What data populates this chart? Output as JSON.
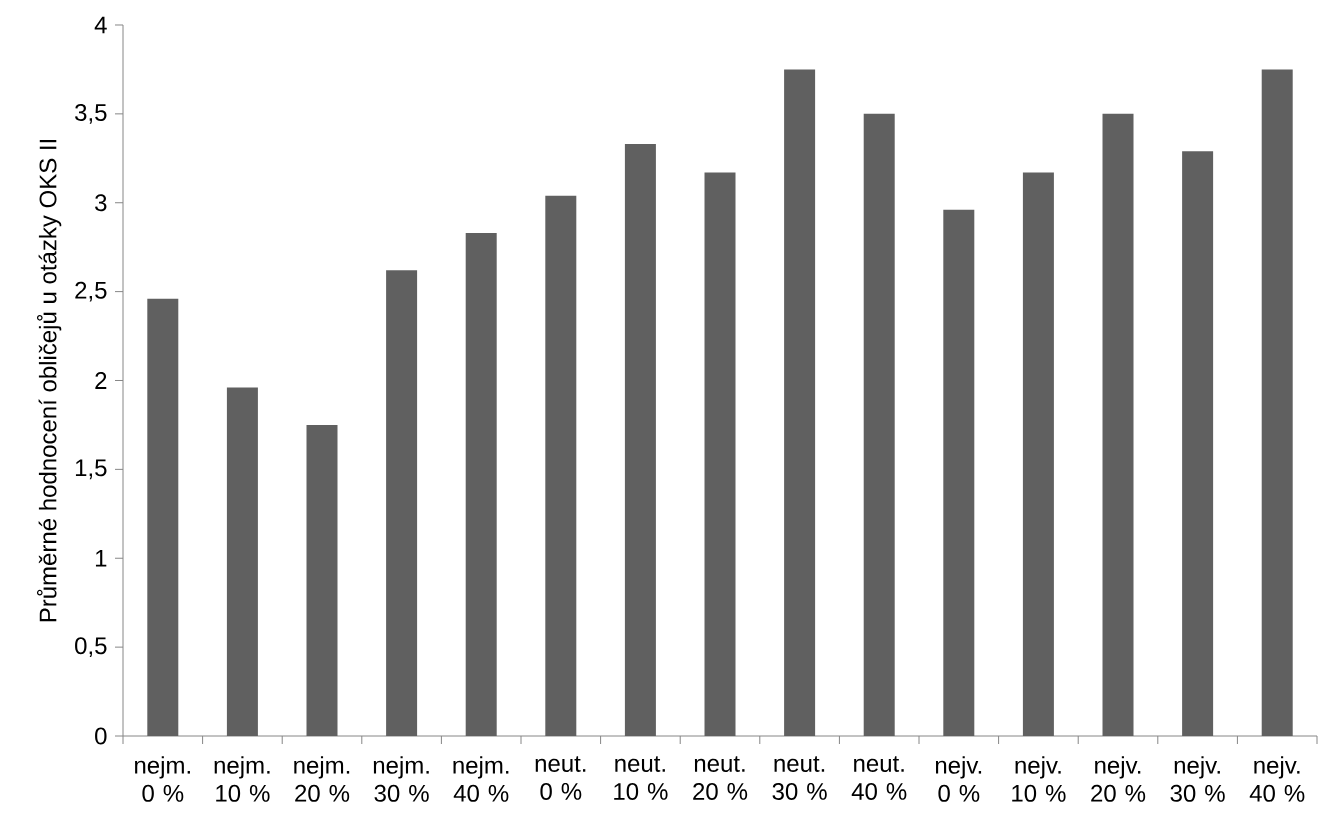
{
  "chart_data": {
    "type": "bar",
    "ylabel": "Průměrné hodnocení obličejů u otázky OKS II",
    "categories": [
      "nejm. 0 %",
      "nejm. 10 %",
      "nejm. 20 %",
      "nejm. 30 %",
      "nejm. 40 %",
      "neut. 0 %",
      "neut. 10 %",
      "neut. 20 %",
      "neut. 30 %",
      "neut. 40 %",
      "nejv. 0 %",
      "nejv. 10 %",
      "nejv. 20 %",
      "nejv. 30 %",
      "nejv. 40 %"
    ],
    "values": [
      2.46,
      1.96,
      1.75,
      2.62,
      2.83,
      3.04,
      3.33,
      3.17,
      3.75,
      3.5,
      2.96,
      3.17,
      3.5,
      3.29,
      3.75
    ],
    "color": "#606060",
    "ylim": [
      0,
      4
    ],
    "yticks": [
      {
        "value": 0,
        "label": "0"
      },
      {
        "value": 0.5,
        "label": "0,5"
      },
      {
        "value": 1,
        "label": "1"
      },
      {
        "value": 1.5,
        "label": "1,5"
      },
      {
        "value": 2,
        "label": "2"
      },
      {
        "value": 2.5,
        "label": "2,5"
      },
      {
        "value": 3,
        "label": "3"
      },
      {
        "value": 3.5,
        "label": "3,5"
      },
      {
        "value": 4,
        "label": "4"
      }
    ],
    "grid": false
  }
}
